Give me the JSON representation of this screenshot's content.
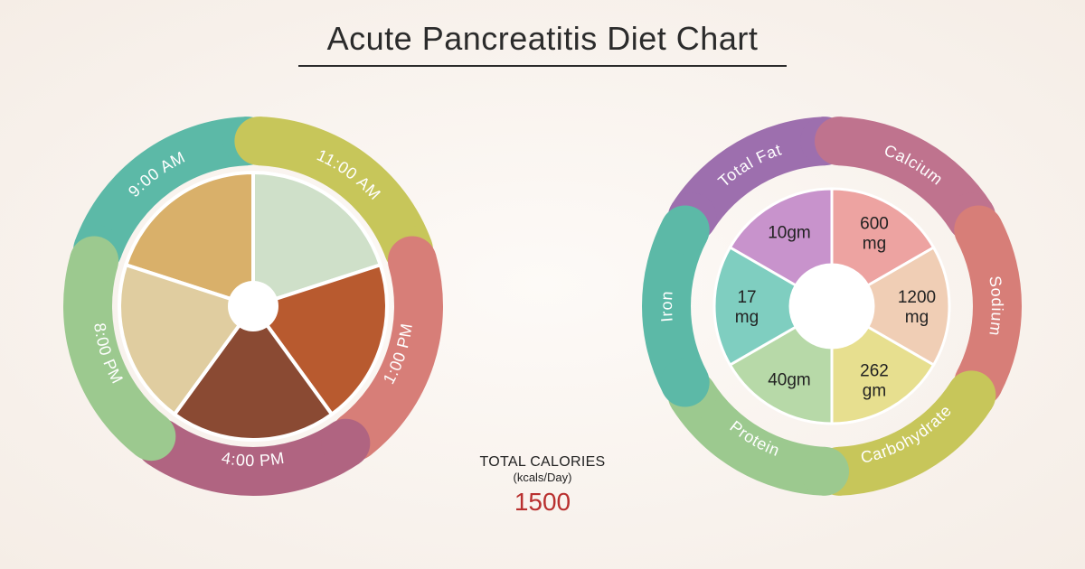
{
  "title": "Acute Pancreatitis Diet Chart",
  "page_bg_inner": "#fdfaf7",
  "page_bg_outer": "#f5ede6",
  "calories": {
    "label": "TOTAL CALORIES",
    "sub": "(kcals/Day)",
    "value": "1500",
    "value_color": "#b9302f"
  },
  "schedule_chart": {
    "type": "radial-segmented",
    "outer_radius": 210,
    "ring_width": 54,
    "gap_deg": 4,
    "center": [
      "#ffffff"
    ],
    "segments": [
      {
        "label": "9:00 AM",
        "color": "#5cb9a7",
        "food_color": "#d9b06a"
      },
      {
        "label": "11:00 AM",
        "color": "#c7c65a",
        "food_color": "#cfe0c9"
      },
      {
        "label": "1:00 PM",
        "color": "#d77e78",
        "food_color": "#b85a2f"
      },
      {
        "label": "4:00 PM",
        "color": "#b06481",
        "food_color": "#8a4a33"
      },
      {
        "label": "8:00 PM",
        "color": "#9cc98f",
        "food_color": "#e0cda0"
      }
    ]
  },
  "nutrient_chart": {
    "type": "radial-segmented",
    "outer_radius": 210,
    "ring_width": 54,
    "inner_pie_radius": 130,
    "hub_radius": 46,
    "gap_deg": 5,
    "segments": [
      {
        "label": "Total Fat",
        "ring_color": "#9d6fae",
        "slice_color": "#c893cc",
        "value": "10gm"
      },
      {
        "label": "Calcium",
        "ring_color": "#bf738e",
        "slice_color": "#eda3a1",
        "value": "600 mg"
      },
      {
        "label": "Sodium",
        "ring_color": "#d77e78",
        "slice_color": "#f0ceb5",
        "value": "1200 mg"
      },
      {
        "label": "Carbohydrate",
        "ring_color": "#c7c65a",
        "slice_color": "#e7df8f",
        "value": "262 gm"
      },
      {
        "label": "Protein",
        "ring_color": "#9cc98f",
        "slice_color": "#b7d9a8",
        "value": "40gm"
      },
      {
        "label": "Iron",
        "ring_color": "#5cb9a7",
        "slice_color": "#7fcec0",
        "value": "17 mg"
      }
    ]
  },
  "fonts": {
    "title_size": 36,
    "arc_label_size": 18,
    "value_size": 19
  }
}
